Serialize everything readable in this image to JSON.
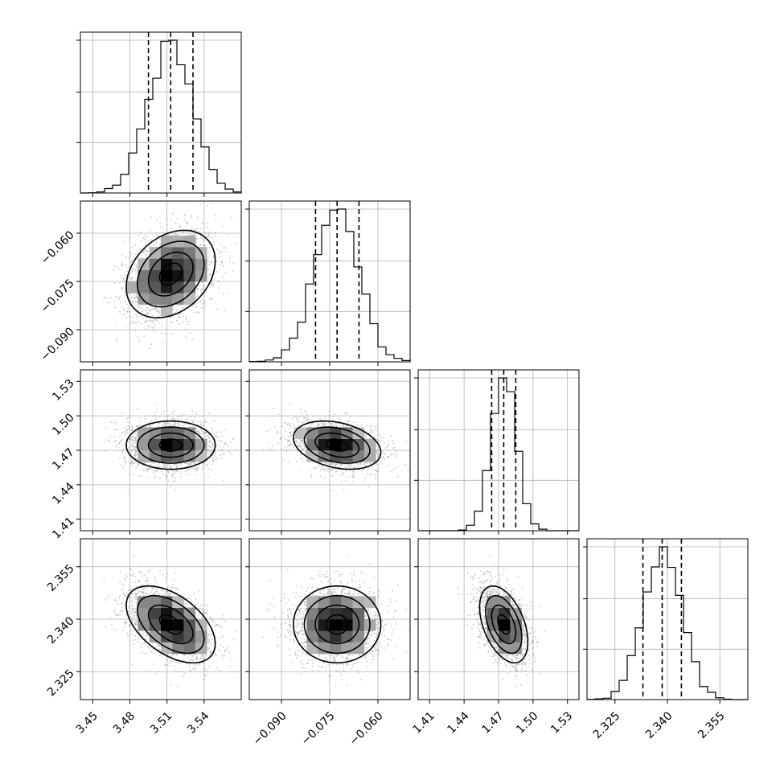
{
  "chart_data": {
    "type": "corner",
    "parameters": 4,
    "axes": [
      {
        "range": [
          3.44,
          3.57
        ],
        "ticks": [
          3.45,
          3.48,
          3.51,
          3.54
        ],
        "tick_labels": [
          "3.45",
          "3.48",
          "3.51",
          "3.54"
        ],
        "mean": 3.513,
        "sd": 0.018,
        "quantiles": [
          3.495,
          3.513,
          3.531
        ]
      },
      {
        "range": [
          -0.1,
          -0.05
        ],
        "ticks": [
          -0.09,
          -0.075,
          -0.06
        ],
        "tick_labels": [
          "−0.090",
          "−0.075",
          "−0.060"
        ],
        "mean": -0.0727,
        "sd": 0.0068,
        "quantiles": [
          -0.0794,
          -0.0727,
          -0.0659
        ]
      },
      {
        "range": [
          1.4,
          1.54
        ],
        "ticks": [
          1.41,
          1.44,
          1.47,
          1.5,
          1.53
        ],
        "tick_labels": [
          "1.41",
          "1.44",
          "1.47",
          "1.50",
          "1.53"
        ],
        "mean": 1.4745,
        "sd": 0.0105,
        "quantiles": [
          1.464,
          1.4745,
          1.485
        ]
      },
      {
        "range": [
          2.317,
          2.363
        ],
        "ticks": [
          2.325,
          2.34,
          2.355
        ],
        "tick_labels": [
          "2.325",
          "2.340",
          "2.355"
        ],
        "mean": 2.3385,
        "sd": 0.0055,
        "quantiles": [
          2.333,
          2.3385,
          2.344
        ]
      }
    ],
    "correlations": [
      [
        1,
        0.3,
        0.0,
        -0.5
      ],
      [
        0.3,
        1,
        -0.3,
        0.0
      ],
      [
        0.0,
        -0.3,
        1,
        -0.45
      ],
      [
        -0.5,
        0.0,
        -0.45,
        1
      ]
    ],
    "histogram_bins": 20,
    "diagonal": "histogram with dashed quantile lines (16%, 50%, 84%)",
    "off_diagonal": "2D density with contours, shaded bins and scatter points",
    "grid": true,
    "title": "",
    "labels": []
  }
}
